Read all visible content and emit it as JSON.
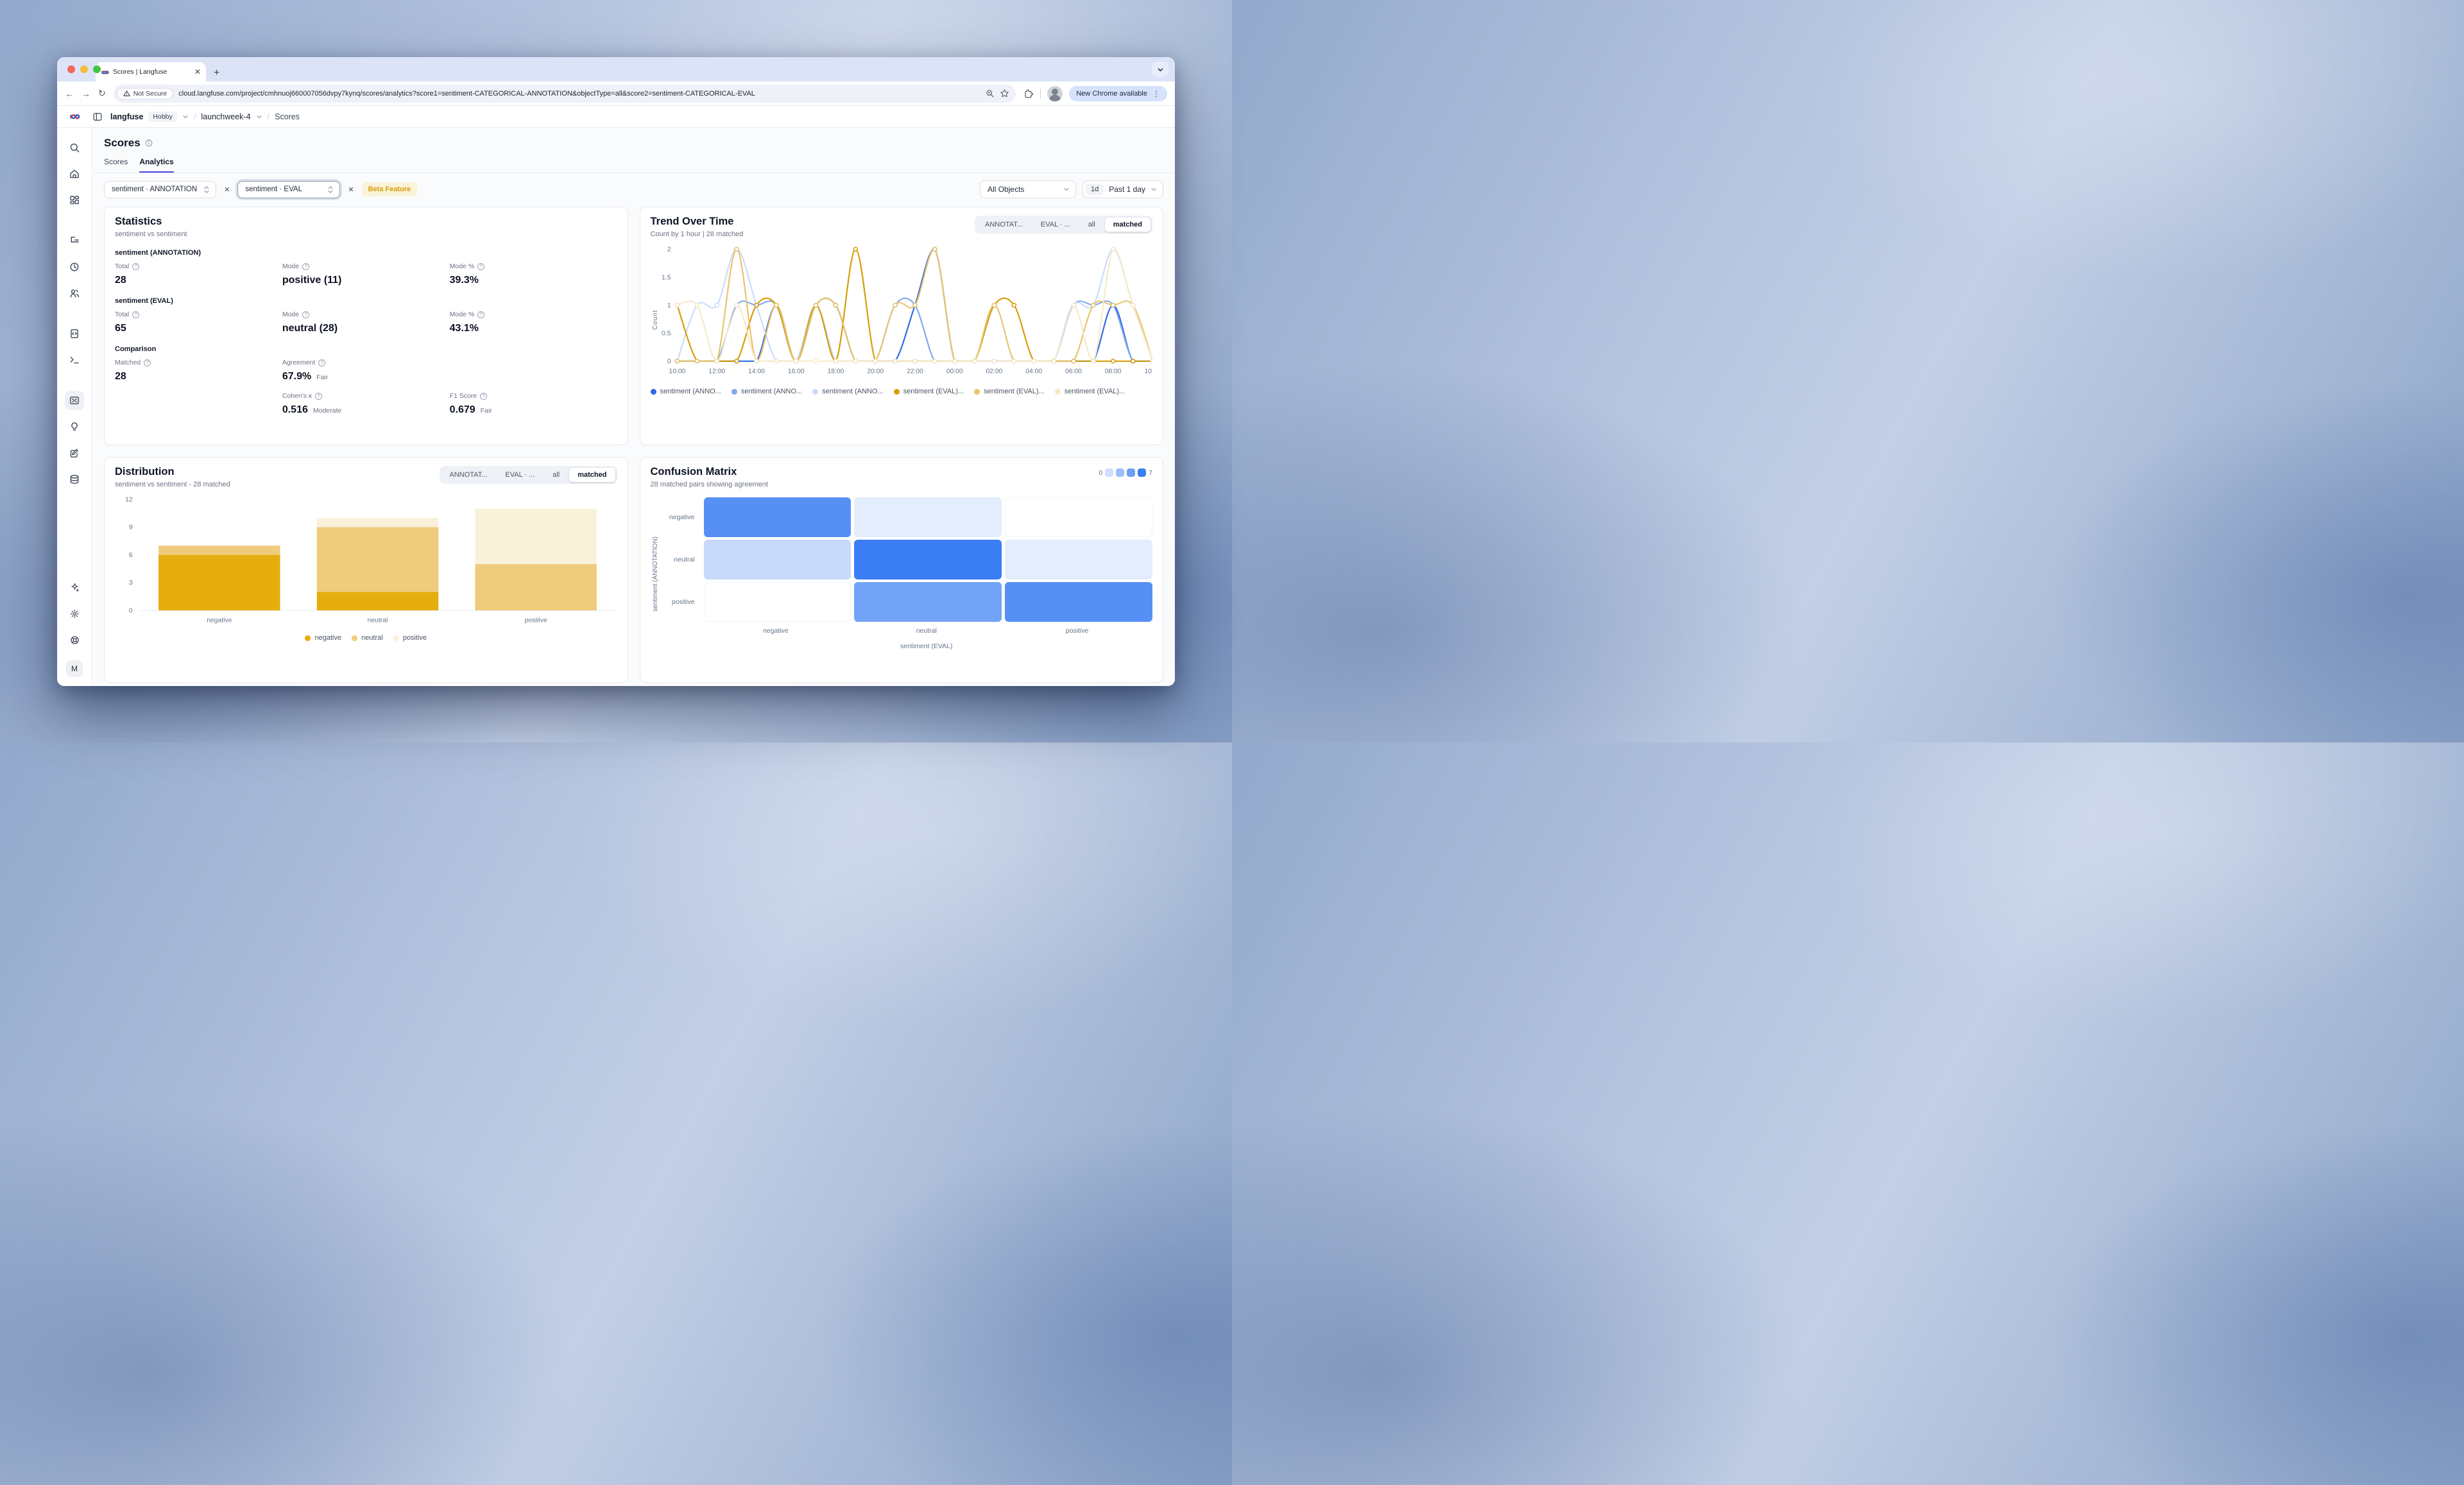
{
  "browser": {
    "tab": {
      "title": "Scores | Langfuse"
    },
    "security_label": "Not Secure",
    "url": "cloud.langfuse.com/project/cmhnuoj660007056dvpy7kynq/scores/analytics?score1=sentiment-CATEGORICAL-ANNOTATION&objectType=all&score2=sentiment-CATEGORICAL-EVAL",
    "update_button": "New Chrome available"
  },
  "app_header": {
    "org": "langfuse",
    "plan": "Hobby",
    "separator": "/",
    "project": "launchweek-4",
    "page": "Scores"
  },
  "page": {
    "title": "Scores",
    "tabs": [
      {
        "label": "Scores",
        "active": false
      },
      {
        "label": "Analytics",
        "active": true
      }
    ]
  },
  "filters": {
    "score1": "sentiment · ANNOTATION",
    "score2": "sentiment · EVAL",
    "beta_badge": "Beta Feature",
    "objects": "All Objects",
    "range_chip": "1d",
    "range_label": "Past 1 day"
  },
  "sidebar": {
    "groups": [
      [
        "search",
        "home",
        "dashboard"
      ],
      [
        "tracing",
        "sessions-clock",
        "users"
      ],
      [
        "prompts",
        "playground-terminal"
      ],
      [
        "scores",
        "evaluator-lightbulb",
        "annotation-clipboard",
        "datasets-database"
      ]
    ],
    "active_icon": "scores",
    "bottom_icons": [
      "sparkle",
      "settings-gear",
      "support-lifebuoy"
    ],
    "avatar": "M"
  },
  "statistics": {
    "title": "Statistics",
    "subtitle": "sentiment vs sentiment",
    "sections": [
      {
        "heading": "sentiment (ANNOTATION)",
        "rows": [
          [
            {
              "label": "Total",
              "value": "28"
            },
            {
              "label": "Mode",
              "value": "positive (11)"
            },
            {
              "label": "Mode %",
              "value": "39.3%"
            }
          ]
        ]
      },
      {
        "heading": "sentiment (EVAL)",
        "rows": [
          [
            {
              "label": "Total",
              "value": "65"
            },
            {
              "label": "Mode",
              "value": "neutral (28)"
            },
            {
              "label": "Mode %",
              "value": "43.1%"
            }
          ]
        ]
      },
      {
        "heading": "Comparison",
        "rows": [
          [
            {
              "label": "Matched",
              "value": "28"
            },
            {
              "label": "Agreement",
              "value": "67.9%",
              "qualifier": "Fair"
            },
            null
          ],
          [
            null,
            {
              "label": "Cohen's κ",
              "value": "0.516",
              "qualifier": "Moderate"
            },
            {
              "label": "F1 Score",
              "value": "0.679",
              "qualifier": "Fair"
            }
          ]
        ]
      }
    ]
  },
  "trend": {
    "title": "Trend Over Time",
    "subtitle": "Count by 1 hour | 28 matched",
    "segments": [
      {
        "label": "ANNOTAT...",
        "active": false
      },
      {
        "label": "EVAL · ...",
        "active": false
      },
      {
        "label": "all",
        "active": false
      },
      {
        "label": "matched",
        "active": true
      }
    ],
    "chart_data": {
      "type": "line",
      "ylabel": "Count",
      "ylim": [
        0,
        2
      ],
      "yticks": [
        "0",
        "0.5",
        "1",
        "1.5",
        "2"
      ],
      "x": [
        "10:00",
        "11:00",
        "12:00",
        "13:00",
        "14:00",
        "15:00",
        "16:00",
        "17:00",
        "18:00",
        "19:00",
        "20:00",
        "21:00",
        "22:00",
        "23:00",
        "00:00",
        "01:00",
        "02:00",
        "03:00",
        "04:00",
        "05:00",
        "06:00",
        "07:00",
        "08:00",
        "09:00",
        "10:00"
      ],
      "x_tick_every": 2,
      "series": [
        {
          "name": "sentiment (ANNO...",
          "color": "#3069e3",
          "values": [
            0,
            0,
            0,
            0,
            0,
            1,
            0,
            1,
            1,
            0,
            0,
            0,
            1,
            2,
            0,
            0,
            0,
            0,
            0,
            0,
            0,
            0,
            1,
            0,
            0
          ]
        },
        {
          "name": "sentiment (ANNO...",
          "color": "#7fa8ef",
          "values": [
            0,
            0,
            0,
            1,
            1,
            1,
            0,
            1,
            1,
            0,
            0,
            1,
            1,
            0,
            0,
            0,
            0,
            0,
            0,
            0,
            1,
            1,
            1,
            0,
            0
          ]
        },
        {
          "name": "sentiment (ANNO...",
          "color": "#c9dcf9",
          "values": [
            0,
            1,
            1,
            2,
            1,
            0,
            0,
            1,
            0,
            0,
            0,
            0,
            0,
            0,
            0,
            0,
            0,
            0,
            0,
            0,
            1,
            1,
            2,
            1,
            0
          ]
        },
        {
          "name": "sentiment (EVAL)...",
          "color": "#d59d06",
          "values": [
            1,
            0,
            0,
            0,
            1,
            1,
            0,
            1,
            0,
            2,
            0,
            0,
            0,
            0,
            0,
            0,
            1,
            1,
            0,
            0,
            0,
            0,
            0,
            0,
            0
          ]
        },
        {
          "name": "sentiment (EVAL)...",
          "color": "#e9c36a",
          "values": [
            0,
            0,
            0,
            2,
            0,
            1,
            0,
            1,
            1,
            0,
            0,
            1,
            1,
            2,
            0,
            0,
            1,
            0,
            0,
            0,
            0,
            1,
            1,
            1,
            0
          ]
        },
        {
          "name": "sentiment (EVAL)...",
          "color": "#f6e9c8",
          "values": [
            1,
            1,
            0,
            1,
            0,
            0,
            0,
            0,
            0,
            0,
            0,
            0,
            0,
            0,
            0,
            0,
            0,
            0,
            0,
            0,
            1,
            0,
            2,
            1,
            0
          ]
        }
      ]
    }
  },
  "distribution": {
    "title": "Distribution",
    "subtitle": "sentiment vs sentiment - 28 matched",
    "segments": [
      {
        "label": "ANNOTAT...",
        "active": false
      },
      {
        "label": "EVAL · ...",
        "active": false
      },
      {
        "label": "all",
        "active": false
      },
      {
        "label": "matched",
        "active": true
      }
    ],
    "chart_data": {
      "type": "bar",
      "stacked": true,
      "categories": [
        "negative",
        "neutral",
        "positive"
      ],
      "ylim": [
        0,
        12
      ],
      "yticks": [
        0,
        3,
        6,
        9,
        12
      ],
      "legend_position": "bottom",
      "series": [
        {
          "name": "negative",
          "color": "#e6ad0e",
          "values": [
            6,
            2,
            0
          ]
        },
        {
          "name": "neutral",
          "color": "#efcb7c",
          "values": [
            1,
            7,
            5
          ]
        },
        {
          "name": "positive",
          "color": "#faf1da",
          "values": [
            0,
            1,
            6
          ]
        }
      ]
    }
  },
  "confusion": {
    "title": "Confusion Matrix",
    "subtitle": "28 matched pairs showing agreement",
    "scale": {
      "min": "0",
      "max": "7",
      "max_color": "#3b7ef3"
    },
    "xlabel": "sentiment (EVAL)",
    "ylabel": "sentiment (ANNOTATION)",
    "chart_data": {
      "type": "heatmap",
      "rows": [
        "negative",
        "neutral",
        "positive"
      ],
      "cols": [
        "negative",
        "neutral",
        "positive"
      ],
      "values": [
        [
          6,
          1,
          0
        ],
        [
          2,
          7,
          1
        ],
        [
          0,
          5,
          6
        ]
      ]
    }
  }
}
